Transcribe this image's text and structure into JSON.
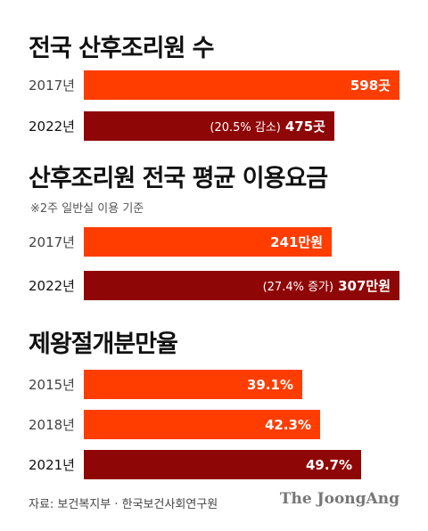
{
  "colors": {
    "light": "#ff3d00",
    "dark": "#8f0606"
  },
  "source": "자료: 보건복지부 · 한국보건사회연구원",
  "logo": "The JoongAng",
  "chart_data": [
    {
      "type": "bar",
      "title": "전국 산후조리원 수",
      "categories": [
        "2017년",
        "2022년"
      ],
      "values": [
        598,
        475
      ],
      "value_labels": [
        "598곳",
        "475곳"
      ],
      "notes": [
        "",
        "(20.5% 감소)"
      ],
      "bar_colors": [
        "light",
        "dark"
      ],
      "xlim": [
        0,
        598
      ]
    },
    {
      "type": "bar",
      "title": "산후조리원 전국 평균 이용요금",
      "subtitle": "※2주 일반실 이용 기준",
      "categories": [
        "2017년",
        "2022년"
      ],
      "values": [
        241,
        307
      ],
      "value_labels": [
        "241만원",
        "307만원"
      ],
      "notes": [
        "",
        "(27.4% 증가)"
      ],
      "bar_colors": [
        "light",
        "dark"
      ],
      "xlim": [
        0,
        307
      ]
    },
    {
      "type": "bar",
      "title": "제왕절개분만율",
      "categories": [
        "2015년",
        "2018년",
        "2021년"
      ],
      "values": [
        39.1,
        42.3,
        49.7
      ],
      "value_labels": [
        "39.1%",
        "42.3%",
        "49.7%"
      ],
      "notes": [
        "",
        "",
        ""
      ],
      "bar_colors": [
        "light",
        "light",
        "dark"
      ],
      "xlim": [
        0,
        56.5
      ]
    }
  ]
}
